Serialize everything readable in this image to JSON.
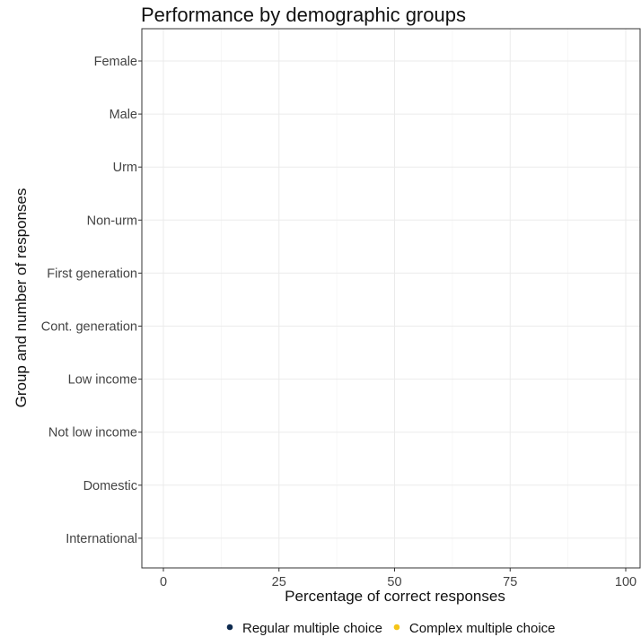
{
  "chart_data": {
    "type": "scatter",
    "title": "Performance by demographic groups",
    "xlabel": "Percentage of correct responses",
    "ylabel": "Group and number of responses",
    "xlim": [
      0,
      100
    ],
    "x_ticks": [
      0,
      25,
      50,
      75,
      100
    ],
    "x_tick_labels": [
      "0",
      "25",
      "50",
      "75",
      "100"
    ],
    "categories": [
      "Female",
      "Male",
      "Urm",
      "Non-urm",
      "First generation",
      "Cont. generation",
      "Low income",
      "Not low income",
      "Domestic",
      "International"
    ],
    "grid": true,
    "legend_position": "bottom",
    "series": [
      {
        "name": "Regular multiple choice",
        "color": "#0d2a4f",
        "values": []
      },
      {
        "name": "Complex multiple choice",
        "color": "#f5c518",
        "values": []
      }
    ]
  }
}
